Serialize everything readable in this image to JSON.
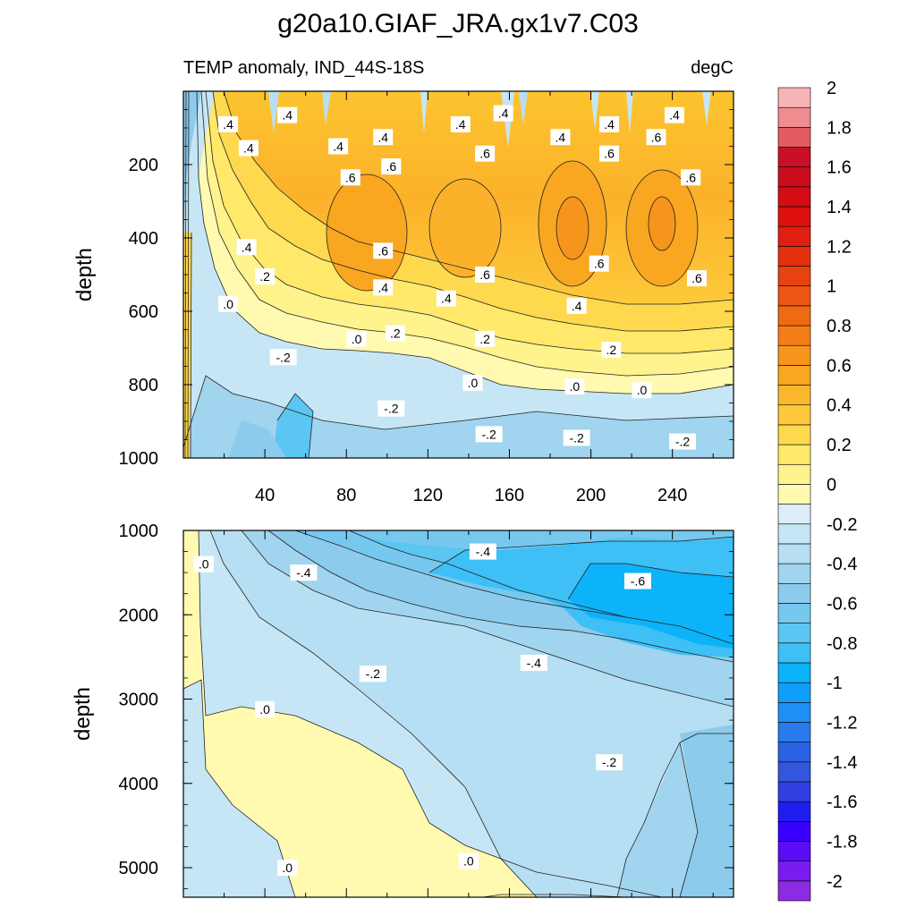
{
  "chart_data": {
    "title": "g20a10.GIAF_JRA.gx1v7.C03",
    "subtitle_left": "TEMP anomaly, IND_44S-18S",
    "subtitle_right": "degC",
    "colorbar": {
      "levels": [
        -2.0,
        -1.9,
        -1.8,
        -1.7,
        -1.6,
        -1.5,
        -1.4,
        -1.3,
        -1.2,
        -1.1,
        -1.0,
        -0.9,
        -0.8,
        -0.7,
        -0.6,
        -0.5,
        -0.4,
        -0.3,
        -0.2,
        -0.1,
        0.0,
        0.1,
        0.2,
        0.3,
        0.4,
        0.5,
        0.6,
        0.7,
        0.8,
        0.9,
        1.0,
        1.1,
        1.2,
        1.3,
        1.4,
        1.5,
        1.6,
        1.7,
        1.8,
        1.9,
        2.0
      ],
      "labels": [
        "-2",
        "-1.8",
        "-1.6",
        "-1.4",
        "-1.2",
        "-1",
        "-0.8",
        "-0.6",
        "-0.4",
        "-0.2",
        "0",
        "0.2",
        "0.4",
        "0.6",
        "0.8",
        "1",
        "1.2",
        "1.4",
        "1.6",
        "1.8",
        "2"
      ],
      "colors": [
        "#8c2be2",
        "#7a1cf0",
        "#5a0cf5",
        "#3a00ff",
        "#1f1df0",
        "#2f3fe0",
        "#3456dc",
        "#2a63e6",
        "#2a7bee",
        "#1f8ff5",
        "#0f9ff8",
        "#0cb3f8",
        "#3ec0f6",
        "#5bc6f2",
        "#76c8ef",
        "#8ccbec",
        "#a0d4ef",
        "#b7dff4",
        "#c6e6f6",
        "#ddeef8",
        "#fffab0",
        "#fff38d",
        "#ffe86a",
        "#fed94e",
        "#fdc93a",
        "#fcb82d",
        "#f9a620",
        "#f7941c",
        "#f47f17",
        "#f06a14",
        "#ec5512",
        "#e84210",
        "#e4300f",
        "#e01f0e",
        "#dc100e",
        "#d40c14",
        "#c90c1c",
        "#c80f25",
        "#e25c61",
        "#ee8c90",
        "#f7b4b8"
      ]
    },
    "panels": [
      {
        "type": "contour",
        "xlabel": "",
        "ylabel": "depth",
        "xlim": [
          0,
          270
        ],
        "ylim": [
          1000,
          0
        ],
        "xticks": [
          40,
          80,
          120,
          160,
          200,
          240
        ],
        "yticks": [
          200,
          400,
          600,
          800,
          1000
        ],
        "contour_labels": [
          {
            "text": ".4",
            "x": 22,
            "y": 90
          },
          {
            "text": ".4",
            "x": 51,
            "y": 65
          },
          {
            "text": ".4",
            "x": 32,
            "y": 155
          },
          {
            "text": ".4",
            "x": 76,
            "y": 150
          },
          {
            "text": ".4",
            "x": 98,
            "y": 125
          },
          {
            "text": ".6",
            "x": 102,
            "y": 205
          },
          {
            "text": ".6",
            "x": 82,
            "y": 235
          },
          {
            "text": ".4",
            "x": 136,
            "y": 90
          },
          {
            "text": ".4",
            "x": 157,
            "y": 60
          },
          {
            "text": ".6",
            "x": 148,
            "y": 170
          },
          {
            "text": ".4",
            "x": 185,
            "y": 125
          },
          {
            "text": ".4",
            "x": 209,
            "y": 90
          },
          {
            "text": ".6",
            "x": 209,
            "y": 170
          },
          {
            "text": ".6",
            "x": 232,
            "y": 125
          },
          {
            "text": ".4",
            "x": 241,
            "y": 65
          },
          {
            "text": ".6",
            "x": 249,
            "y": 235
          },
          {
            "text": ".4",
            "x": 31,
            "y": 425
          },
          {
            "text": ".6",
            "x": 98,
            "y": 435
          },
          {
            "text": ".2",
            "x": 40,
            "y": 505
          },
          {
            "text": ".4",
            "x": 98,
            "y": 535
          },
          {
            "text": ".6",
            "x": 148,
            "y": 500
          },
          {
            "text": ".6",
            "x": 204,
            "y": 470
          },
          {
            "text": ".6",
            "x": 252,
            "y": 510
          },
          {
            "text": ".4",
            "x": 129,
            "y": 565
          },
          {
            "text": ".4",
            "x": 193,
            "y": 585
          },
          {
            "text": ".0",
            "x": 22,
            "y": 580
          },
          {
            "text": ".2",
            "x": 104,
            "y": 660
          },
          {
            "text": ".2",
            "x": 148,
            "y": 675
          },
          {
            "text": ".2",
            "x": 210,
            "y": 705
          },
          {
            "text": ".0",
            "x": 85,
            "y": 675
          },
          {
            "text": "-.2",
            "x": 49,
            "y": 725
          },
          {
            "text": ".0",
            "x": 142,
            "y": 795
          },
          {
            "text": ".0",
            "x": 192,
            "y": 805
          },
          {
            "text": ".0",
            "x": 225,
            "y": 815
          },
          {
            "text": "-.2",
            "x": 102,
            "y": 865
          },
          {
            "text": "-.2",
            "x": 150,
            "y": 935
          },
          {
            "text": "-.2",
            "x": 193,
            "y": 945
          },
          {
            "text": "-.2",
            "x": 245,
            "y": 955
          }
        ]
      },
      {
        "type": "contour",
        "xlabel": "",
        "ylabel": "depth",
        "xlim": [
          0,
          270
        ],
        "ylim": [
          5350,
          1000
        ],
        "yticks": [
          1000,
          2000,
          3000,
          4000,
          5000
        ],
        "contour_labels": [
          {
            "text": ".0",
            "x": 10,
            "y": 1400
          },
          {
            "text": "-.4",
            "x": 59,
            "y": 1500
          },
          {
            "text": "-.4",
            "x": 147,
            "y": 1250
          },
          {
            "text": "-.6",
            "x": 223,
            "y": 1600
          },
          {
            "text": "-.2",
            "x": 93,
            "y": 2700
          },
          {
            "text": "-.4",
            "x": 172,
            "y": 2570
          },
          {
            "text": ".0",
            "x": 40,
            "y": 3120
          },
          {
            "text": "-.2",
            "x": 209,
            "y": 3750
          },
          {
            "text": ".0",
            "x": 140,
            "y": 4920
          },
          {
            "text": ".0",
            "x": 51,
            "y": 5000
          }
        ]
      }
    ]
  }
}
